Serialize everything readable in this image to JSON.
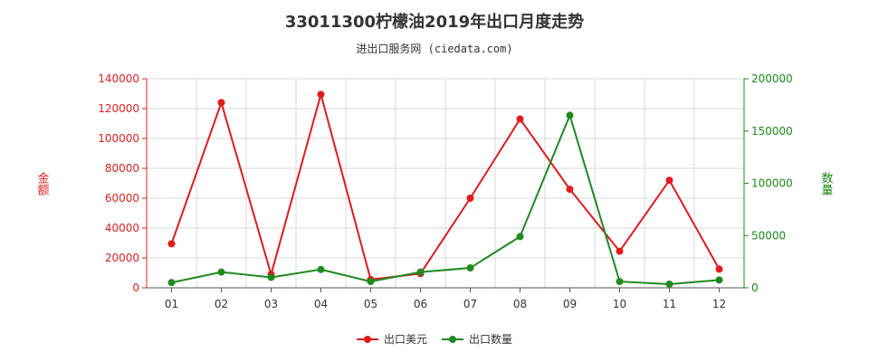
{
  "page": {
    "title": "33011300柠檬油2019年出口月度走势",
    "subtitle": "进出口服务网 (ciedata.com)"
  },
  "colors": {
    "left_axis": "#e02020",
    "right_axis": "#1a8a1a",
    "series_value": "#e31a1c",
    "series_quantity": "#1f8a1f",
    "grid": "#d9d9d9",
    "axis_line": "#555555"
  },
  "chart_data": {
    "type": "line",
    "title": "33011300柠檬油2019年出口月度走势",
    "subtitle": "进出口服务网 (ciedata.com)",
    "categories": [
      "01",
      "02",
      "03",
      "04",
      "05",
      "06",
      "07",
      "08",
      "09",
      "10",
      "11",
      "12"
    ],
    "y_left": {
      "label": "金额",
      "range": [
        0,
        140000
      ],
      "ticks": [
        "0",
        "20000",
        "40000",
        "60000",
        "80000",
        "100000",
        "120000",
        "140000"
      ]
    },
    "y_right": {
      "label": "数量",
      "range": [
        0,
        200000
      ],
      "ticks": [
        "0",
        "50000",
        "100000",
        "150000",
        "200000"
      ]
    },
    "grid": true,
    "legend_position": "bottom-center",
    "series": [
      {
        "name": "出口美元",
        "axis": "left",
        "color": "#e31a1c",
        "values": [
          29500,
          124000,
          9000,
          129500,
          5500,
          9500,
          60000,
          113000,
          66000,
          24500,
          72000,
          12500
        ]
      },
      {
        "name": "出口数量",
        "axis": "right",
        "color": "#1f8a1f",
        "values": [
          5000,
          15000,
          10000,
          17500,
          6000,
          15000,
          19000,
          49000,
          165000,
          6000,
          3500,
          7500
        ]
      }
    ]
  }
}
